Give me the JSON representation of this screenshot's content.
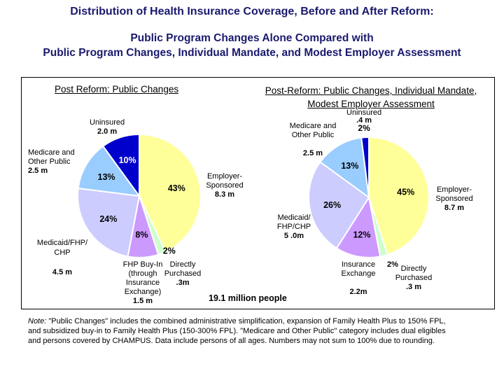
{
  "title": "Distribution of Health Insurance Coverage, Before and After Reform:",
  "subtitle_line1": "Public Program Changes Alone Compared with",
  "subtitle_line2": "Public Program Changes, Individual Mandate, and Modest Employer Assessment",
  "total": "19.1 million people",
  "note_label": "Note:",
  "note": " \"Public Changes\" includes the combined administrative simplification, expansion of Family Health Plus to 150% FPL, and subsidized buy-in to Family Health Plus (150-300% FPL). \"Medicare and Other Public\" category includes dual eligibles and persons covered by CHAMPUS. Data include persons of all ages. Numbers may not sum to 100% due to rounding.",
  "chart_data": [
    {
      "type": "pie",
      "title": "Post Reform: Public Changes",
      "slices": [
        {
          "label": "Employer-Sponsored",
          "value": 43,
          "pct": "43%",
          "amount": "8.3 m",
          "color": "#ffff99"
        },
        {
          "label": "Directly Purchased",
          "value": 2,
          "pct": "2%",
          "amount": ".3m",
          "color": "#ccffcc"
        },
        {
          "label": "FHP Buy-In (through Insurance Exchange)",
          "value": 8,
          "pct": "8%",
          "amount": "1.5 m",
          "color": "#cc99ff"
        },
        {
          "label": "Medicaid/FHP/ CHP",
          "value": 24,
          "pct": "24%",
          "amount": "4.5 m",
          "color": "#ccccff"
        },
        {
          "label": "Medicare and Other Public",
          "value": 13,
          "pct": "13%",
          "amount": "2.5 m",
          "color": "#99ccff"
        },
        {
          "label": "Uninsured",
          "value": 10,
          "pct": "10%",
          "amount": "2.0 m",
          "color": "#0000cc"
        }
      ]
    },
    {
      "type": "pie",
      "title": "Post-Reform: Public Changes, Individual Mandate, Modest Employer Assessment",
      "slices": [
        {
          "label": "Employer-Sponsored",
          "value": 45,
          "pct": "45%",
          "amount": "8.7 m",
          "color": "#ffff99"
        },
        {
          "label": "Directly Purchased",
          "value": 2,
          "pct": "2%",
          "amount": ".3 m",
          "color": "#ccffcc"
        },
        {
          "label": "Insurance Exchange",
          "value": 12,
          "pct": "12%",
          "amount": "2.2m",
          "color": "#cc99ff"
        },
        {
          "label": "Medicaid/ FHP/CHP",
          "value": 26,
          "pct": "26%",
          "amount": "5 .0m",
          "color": "#ccccff"
        },
        {
          "label": "Medicare and Other Public",
          "value": 13,
          "pct": "13%",
          "amount": "2.5 m",
          "color": "#99ccff"
        },
        {
          "label": "Uninsured",
          "value": 2,
          "pct": "2%",
          "amount": ".4 m",
          "color": "#0000cc"
        }
      ]
    }
  ]
}
